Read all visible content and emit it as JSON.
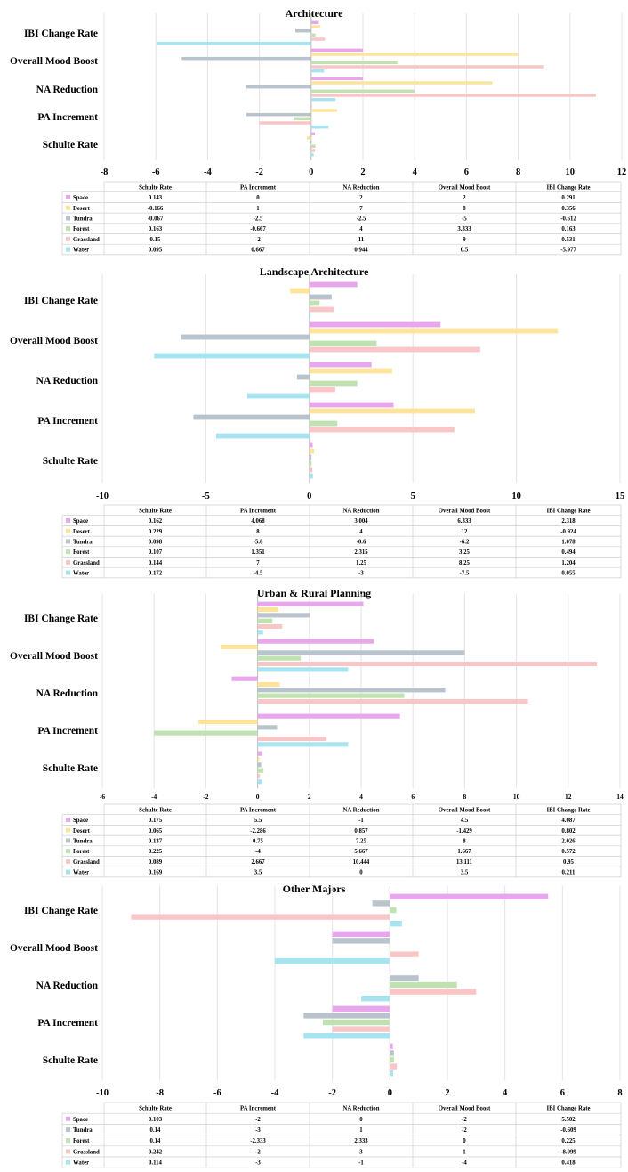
{
  "categories": [
    "Schulte Rate",
    "PA Increment",
    "NA Reduction",
    "Overall Mood Boost",
    "IBI Change Rate"
  ],
  "colors": {
    "Space": "#e8a6ec",
    "Desert": "#fde49a",
    "Tundra": "#b9c3cc",
    "Forest": "#bfe2b0",
    "Grassland": "#f8c6c6",
    "Water": "#a8e4f0"
  },
  "chart_data": [
    {
      "type": "bar",
      "orientation": "horizontal",
      "title": "Architecture",
      "categories": [
        "Schulte Rate",
        "PA Increment",
        "NA Reduction",
        "Overall Mood Boost",
        "IBI Change Rate"
      ],
      "xlim": [
        -8,
        12
      ],
      "xticks": [
        "-8",
        "-6",
        "-4",
        "-2",
        "0",
        "2",
        "4",
        "6",
        "8",
        "10",
        "12"
      ],
      "series": [
        {
          "name": "Space",
          "values": [
            0.143,
            0,
            2,
            2,
            0.291
          ]
        },
        {
          "name": "Desert",
          "values": [
            -0.166,
            1,
            7,
            8,
            0.356
          ]
        },
        {
          "name": "Tundra",
          "values": [
            -0.067,
            -2.5,
            -2.5,
            -5,
            -0.612
          ]
        },
        {
          "name": "Forest",
          "values": [
            0.163,
            -0.667,
            4,
            3.333,
            0.163
          ]
        },
        {
          "name": "Grassland",
          "values": [
            0.15,
            -2,
            11,
            9,
            0.531
          ]
        },
        {
          "name": "Water",
          "values": [
            0.095,
            0.667,
            0.944,
            0.5,
            -5.977
          ]
        }
      ],
      "table": {
        "columns": [
          "Schulte Rate",
          "PA Increment",
          "NA Reduction",
          "Overall Mood Boost",
          "IBI Change Rate"
        ],
        "rows": [
          {
            "name": "Space",
            "cells": [
              "0.143",
              "0",
              "2",
              "2",
              "0.291"
            ]
          },
          {
            "name": "Desert",
            "cells": [
              "-0.166",
              "1",
              "7",
              "8",
              "0.356"
            ]
          },
          {
            "name": "Tundra",
            "cells": [
              "-0.067",
              "-2.5",
              "-2.5",
              "-5",
              "-0.612"
            ]
          },
          {
            "name": "Forest",
            "cells": [
              "0.163",
              "-0.667",
              "4",
              "3.333",
              "0.163"
            ]
          },
          {
            "name": "Grassland",
            "cells": [
              "0.15",
              "-2",
              "11",
              "9",
              "0.531"
            ]
          },
          {
            "name": "Water",
            "cells": [
              "0.095",
              "0.667",
              "0.944",
              "0.5",
              "-5.977"
            ]
          }
        ]
      }
    },
    {
      "type": "bar",
      "orientation": "horizontal",
      "title": "Landscape Architecture",
      "categories": [
        "Schulte Rate",
        "PA Increment",
        "NA Reduction",
        "Overall Mood Boost",
        "IBI Change Rate"
      ],
      "xlim": [
        -10,
        15
      ],
      "xticks": [
        "-10",
        "-5",
        "0",
        "5",
        "10",
        "15"
      ],
      "series": [
        {
          "name": "Space",
          "values": [
            0.162,
            4.068,
            3.004,
            6.333,
            2.318
          ]
        },
        {
          "name": "Desert",
          "values": [
            0.229,
            8,
            4,
            12,
            -0.924
          ]
        },
        {
          "name": "Tundra",
          "values": [
            0.098,
            -5.6,
            -0.6,
            -6.2,
            1.078
          ]
        },
        {
          "name": "Forest",
          "values": [
            0.107,
            1.351,
            2.315,
            3.25,
            0.494
          ]
        },
        {
          "name": "Grassland",
          "values": [
            0.144,
            7,
            1.25,
            8.25,
            1.204
          ]
        },
        {
          "name": "Water",
          "values": [
            0.172,
            -4.5,
            -3,
            -7.5,
            0.055
          ]
        }
      ],
      "table": {
        "columns": [
          "Schulte Rate",
          "PA Increment",
          "NA Reduction",
          "Overall Mood Boost",
          "IBI Change Rate"
        ],
        "rows": [
          {
            "name": "Space",
            "cells": [
              "0.162",
              "4.068",
              "3.004",
              "6.333",
              "2.318"
            ]
          },
          {
            "name": "Desert",
            "cells": [
              "0.229",
              "8",
              "4",
              "12",
              "-0.924"
            ]
          },
          {
            "name": "Tundra",
            "cells": [
              "0.098",
              "-5.6",
              "-0.6",
              "-6.2",
              "1.078"
            ]
          },
          {
            "name": "Forest",
            "cells": [
              "0.107",
              "1.351",
              "2.315",
              "3.25",
              "0.494"
            ]
          },
          {
            "name": "Grassland",
            "cells": [
              "0.144",
              "7",
              "1.25",
              "8.25",
              "1.204"
            ]
          },
          {
            "name": "Water",
            "cells": [
              "0.172",
              "-4.5",
              "-3",
              "-7.5",
              "0.055"
            ]
          }
        ]
      }
    },
    {
      "type": "bar",
      "orientation": "horizontal",
      "title": "Urban & Rural Planning",
      "categories": [
        "Schulte Rate",
        "PA Increment",
        "NA Reduction",
        "Overall Mood Boost",
        "IBI Change Rate"
      ],
      "xlim": [
        -6,
        14
      ],
      "xticks": [
        "-6",
        "-4",
        "-2",
        "0",
        "2",
        "4",
        "6",
        "8",
        "10",
        "12",
        "14"
      ],
      "series": [
        {
          "name": "Space",
          "values": [
            0.175,
            5.5,
            -1,
            4.5,
            4.087
          ]
        },
        {
          "name": "Desert",
          "values": [
            0.065,
            -2.286,
            0.857,
            -1.429,
            0.802
          ]
        },
        {
          "name": "Tundra",
          "values": [
            0.137,
            0.75,
            7.25,
            8,
            2.026
          ]
        },
        {
          "name": "Forest",
          "values": [
            0.225,
            -4,
            5.667,
            1.667,
            0.572
          ]
        },
        {
          "name": "Grassland",
          "values": [
            0.089,
            2.667,
            10.444,
            13.111,
            0.95
          ]
        },
        {
          "name": "Water",
          "values": [
            0.169,
            3.5,
            0,
            3.5,
            0.211
          ]
        }
      ],
      "table": {
        "columns": [
          "Schulte Rate",
          "PA Increment",
          "NA Reduction",
          "Overall Mood Boost",
          "IBI Change Rate"
        ],
        "rows": [
          {
            "name": "Space",
            "cells": [
              "0.175",
              "5.5",
              "-1",
              "4.5",
              "4.087"
            ]
          },
          {
            "name": "Desert",
            "cells": [
              "0.065",
              "-2.286",
              "0.857",
              "-1.429",
              "0.802"
            ]
          },
          {
            "name": "Tundra",
            "cells": [
              "0.137",
              "0.75",
              "7.25",
              "8",
              "2.026"
            ]
          },
          {
            "name": "Forest",
            "cells": [
              "0.225",
              "-4",
              "5.667",
              "1.667",
              "0.572"
            ]
          },
          {
            "name": "Grassland",
            "cells": [
              "0.089",
              "2.667",
              "10.444",
              "13.111",
              "0.95"
            ]
          },
          {
            "name": "Water",
            "cells": [
              "0.169",
              "3.5",
              "0",
              "3.5",
              "0.211"
            ]
          }
        ]
      }
    },
    {
      "type": "bar",
      "orientation": "horizontal",
      "title": "Other Majors",
      "categories": [
        "Schulte Rate",
        "PA Increment",
        "NA Reduction",
        "Overall Mood Boost",
        "IBI Change Rate"
      ],
      "xlim": [
        -10,
        8
      ],
      "xticks": [
        "-10",
        "-8",
        "-6",
        "-4",
        "-2",
        "0",
        "2",
        "4",
        "6",
        "8"
      ],
      "series": [
        {
          "name": "Space",
          "values": [
            0.103,
            -2,
            0,
            -2,
            5.502
          ]
        },
        {
          "name": "Tundra",
          "values": [
            0.14,
            -3,
            1,
            -2,
            -0.609
          ]
        },
        {
          "name": "Forest",
          "values": [
            0.14,
            -2.333,
            2.333,
            0,
            0.225
          ]
        },
        {
          "name": "Grassland",
          "values": [
            0.242,
            -2,
            3,
            1,
            -8.999
          ]
        },
        {
          "name": "Water",
          "values": [
            0.114,
            -3,
            -1,
            -4,
            0.418
          ]
        }
      ],
      "table": {
        "columns": [
          "Schulte Rate",
          "PA Increment",
          "NA Reduction",
          "Overall Mood Boost",
          "IBI Change Rate"
        ],
        "rows": [
          {
            "name": "Space",
            "cells": [
              "0.103",
              "-2",
              "0",
              "-2",
              "5.502"
            ]
          },
          {
            "name": "Tundra",
            "cells": [
              "0.14",
              "-3",
              "1",
              "-2",
              "-0.609"
            ]
          },
          {
            "name": "Forest",
            "cells": [
              "0.14",
              "-2.333",
              "2.333",
              "0",
              "0.225"
            ]
          },
          {
            "name": "Grassland",
            "cells": [
              "0.242",
              "-2",
              "3",
              "1",
              "-8.999"
            ]
          },
          {
            "name": "Water",
            "cells": [
              "0.114",
              "-3",
              "-1",
              "-4",
              "0.418"
            ]
          }
        ]
      }
    }
  ]
}
